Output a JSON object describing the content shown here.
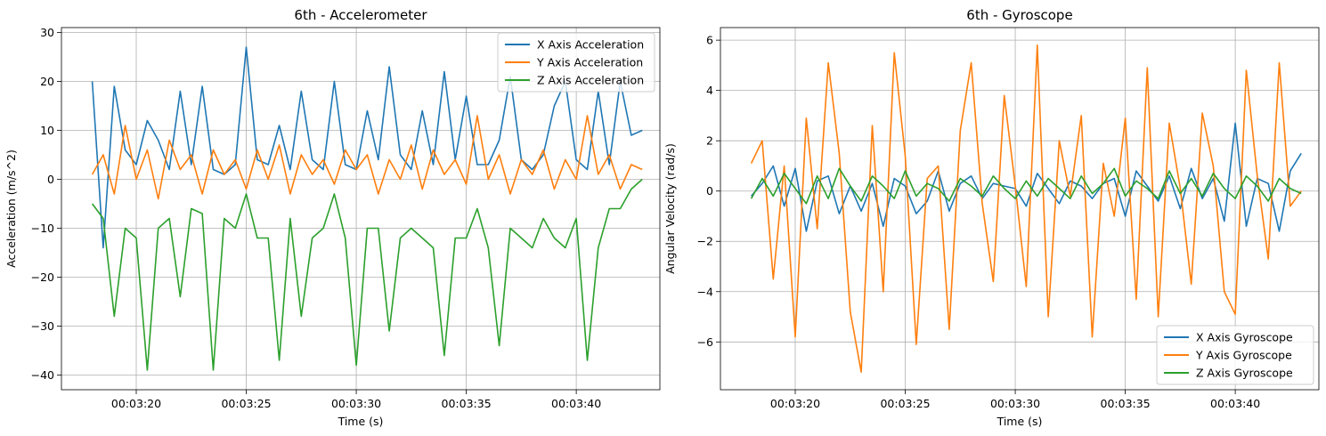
{
  "chart_data": [
    {
      "type": "line",
      "title": "6th - Accelerometer",
      "xlabel": "Time (s)",
      "ylabel": "Acceleration (m/s^2)",
      "x_unit": "seconds",
      "xlim": [
        "00:03:16.6",
        "00:03:43.8"
      ],
      "ylim": [
        -43,
        31
      ],
      "x_ticks": [
        "00:03:20",
        "00:03:25",
        "00:03:30",
        "00:03:35",
        "00:03:40"
      ],
      "y_ticks": [
        -40,
        -30,
        -20,
        -10,
        0,
        10,
        20,
        30
      ],
      "grid": true,
      "legend_position": "top-right",
      "series": [
        {
          "name": "X Axis Acceleration",
          "color": "#1f77b4",
          "x": [
            "00:03:18.0",
            "00:03:18.5",
            "00:03:19.0",
            "00:03:19.5",
            "00:03:20.0",
            "00:03:20.5",
            "00:03:21.0",
            "00:03:21.5",
            "00:03:22.0",
            "00:03:22.5",
            "00:03:23.0",
            "00:03:23.5",
            "00:03:24.0",
            "00:03:24.5",
            "00:03:25.0",
            "00:03:25.5",
            "00:03:26.0",
            "00:03:26.5",
            "00:03:27.0",
            "00:03:27.5",
            "00:03:28.0",
            "00:03:28.5",
            "00:03:29.0",
            "00:03:29.5",
            "00:03:30.0",
            "00:03:30.5",
            "00:03:31.0",
            "00:03:31.5",
            "00:03:32.0",
            "00:03:32.5",
            "00:03:33.0",
            "00:03:33.5",
            "00:03:34.0",
            "00:03:34.5",
            "00:03:35.0",
            "00:03:35.5",
            "00:03:36.0",
            "00:03:36.5",
            "00:03:37.0",
            "00:03:37.5",
            "00:03:38.0",
            "00:03:38.5",
            "00:03:39.0",
            "00:03:39.5",
            "00:03:40.0",
            "00:03:40.5",
            "00:03:41.0",
            "00:03:41.5",
            "00:03:42.0",
            "00:03:42.5",
            "00:03:43.0"
          ],
          "values": [
            20,
            -14,
            19,
            6,
            3,
            12,
            8,
            2,
            18,
            3,
            19,
            2,
            1,
            3,
            27,
            4,
            3,
            11,
            2,
            18,
            4,
            2,
            20,
            3,
            2,
            14,
            4,
            23,
            5,
            2,
            14,
            3,
            22,
            4,
            17,
            3,
            3,
            8,
            21,
            4,
            2,
            5,
            15,
            20,
            4,
            2,
            18,
            3,
            20,
            9,
            10
          ]
        },
        {
          "name": "Y Axis Acceleration",
          "color": "#ff7f0e",
          "x": [
            "00:03:18.0",
            "00:03:18.5",
            "00:03:19.0",
            "00:03:19.5",
            "00:03:20.0",
            "00:03:20.5",
            "00:03:21.0",
            "00:03:21.5",
            "00:03:22.0",
            "00:03:22.5",
            "00:03:23.0",
            "00:03:23.5",
            "00:03:24.0",
            "00:03:24.5",
            "00:03:25.0",
            "00:03:25.5",
            "00:03:26.0",
            "00:03:26.5",
            "00:03:27.0",
            "00:03:27.5",
            "00:03:28.0",
            "00:03:28.5",
            "00:03:29.0",
            "00:03:29.5",
            "00:03:30.0",
            "00:03:30.5",
            "00:03:31.0",
            "00:03:31.5",
            "00:03:32.0",
            "00:03:32.5",
            "00:03:33.0",
            "00:03:33.5",
            "00:03:34.0",
            "00:03:34.5",
            "00:03:35.0",
            "00:03:35.5",
            "00:03:36.0",
            "00:03:36.5",
            "00:03:37.0",
            "00:03:37.5",
            "00:03:38.0",
            "00:03:38.5",
            "00:03:39.0",
            "00:03:39.5",
            "00:03:40.0",
            "00:03:40.5",
            "00:03:41.0",
            "00:03:41.5",
            "00:03:42.0",
            "00:03:42.5",
            "00:03:43.0"
          ],
          "values": [
            1,
            5,
            -3,
            11,
            0,
            6,
            -4,
            8,
            2,
            5,
            -3,
            6,
            1,
            4,
            -2,
            6,
            0,
            7,
            -3,
            5,
            1,
            4,
            -1,
            6,
            2,
            5,
            -3,
            4,
            0,
            7,
            -2,
            6,
            1,
            4,
            -1,
            13,
            0,
            5,
            -3,
            4,
            1,
            6,
            -2,
            4,
            0,
            13,
            1,
            5,
            -2,
            3,
            2
          ]
        },
        {
          "name": "Z Axis Acceleration",
          "color": "#2ca02c",
          "x": [
            "00:03:18.0",
            "00:03:18.5",
            "00:03:19.0",
            "00:03:19.5",
            "00:03:20.0",
            "00:03:20.5",
            "00:03:21.0",
            "00:03:21.5",
            "00:03:22.0",
            "00:03:22.5",
            "00:03:23.0",
            "00:03:23.5",
            "00:03:24.0",
            "00:03:24.5",
            "00:03:25.0",
            "00:03:25.5",
            "00:03:26.0",
            "00:03:26.5",
            "00:03:27.0",
            "00:03:27.5",
            "00:03:28.0",
            "00:03:28.5",
            "00:03:29.0",
            "00:03:29.5",
            "00:03:30.0",
            "00:03:30.5",
            "00:03:31.0",
            "00:03:31.5",
            "00:03:32.0",
            "00:03:32.5",
            "00:03:33.0",
            "00:03:33.5",
            "00:03:34.0",
            "00:03:34.5",
            "00:03:35.0",
            "00:03:35.5",
            "00:03:36.0",
            "00:03:36.5",
            "00:03:37.0",
            "00:03:37.5",
            "00:03:38.0",
            "00:03:38.5",
            "00:03:39.0",
            "00:03:39.5",
            "00:03:40.0",
            "00:03:40.5",
            "00:03:41.0",
            "00:03:41.5",
            "00:03:42.0",
            "00:03:42.5",
            "00:03:43.0"
          ],
          "values": [
            -5,
            -8,
            -28,
            -10,
            -12,
            -39,
            -10,
            -8,
            -24,
            -6,
            -7,
            -39,
            -8,
            -10,
            -3,
            -12,
            -12,
            -37,
            -8,
            -28,
            -12,
            -10,
            -3,
            -12,
            -38,
            -10,
            -10,
            -31,
            -12,
            -10,
            -12,
            -14,
            -36,
            -12,
            -12,
            -6,
            -14,
            -34,
            -10,
            -12,
            -14,
            -8,
            -12,
            -14,
            -8,
            -37,
            -14,
            -6,
            -6,
            -2,
            0
          ]
        }
      ]
    },
    {
      "type": "line",
      "title": "6th - Gyroscope",
      "xlabel": "Time (s)",
      "ylabel": "Angular Velocity (rad/s)",
      "x_unit": "seconds",
      "xlim": [
        "00:03:16.6",
        "00:03:43.8"
      ],
      "ylim": [
        -7.9,
        6.5
      ],
      "x_ticks": [
        "00:03:20",
        "00:03:25",
        "00:03:30",
        "00:03:35",
        "00:03:40"
      ],
      "y_ticks": [
        -6,
        -4,
        -2,
        0,
        2,
        4,
        6
      ],
      "grid": true,
      "legend_position": "bottom-right",
      "series": [
        {
          "name": "X Axis Gyroscope",
          "color": "#1f77b4",
          "x": [
            "00:03:18.0",
            "00:03:18.5",
            "00:03:19.0",
            "00:03:19.5",
            "00:03:20.0",
            "00:03:20.5",
            "00:03:21.0",
            "00:03:21.5",
            "00:03:22.0",
            "00:03:22.5",
            "00:03:23.0",
            "00:03:23.5",
            "00:03:24.0",
            "00:03:24.5",
            "00:03:25.0",
            "00:03:25.5",
            "00:03:26.0",
            "00:03:26.5",
            "00:03:27.0",
            "00:03:27.5",
            "00:03:28.0",
            "00:03:28.5",
            "00:03:29.0",
            "00:03:29.5",
            "00:03:30.0",
            "00:03:30.5",
            "00:03:31.0",
            "00:03:31.5",
            "00:03:32.0",
            "00:03:32.5",
            "00:03:33.0",
            "00:03:33.5",
            "00:03:34.0",
            "00:03:34.5",
            "00:03:35.0",
            "00:03:35.5",
            "00:03:36.0",
            "00:03:36.5",
            "00:03:37.0",
            "00:03:37.5",
            "00:03:38.0",
            "00:03:38.5",
            "00:03:39.0",
            "00:03:39.5",
            "00:03:40.0",
            "00:03:40.5",
            "00:03:41.0",
            "00:03:41.5",
            "00:03:42.0",
            "00:03:42.5",
            "00:03:43.0"
          ],
          "values": [
            -0.2,
            0.3,
            1.0,
            -0.6,
            0.9,
            -1.6,
            0.4,
            0.6,
            -0.9,
            0.2,
            -0.8,
            0.3,
            -1.4,
            0.5,
            0.2,
            -0.9,
            -0.4,
            0.8,
            -0.8,
            0.3,
            0.6,
            -0.3,
            0.3,
            0.2,
            0.1,
            -0.6,
            0.7,
            0.1,
            -0.5,
            0.4,
            0.2,
            -0.3,
            0.3,
            0.5,
            -1.0,
            0.8,
            0.2,
            -0.4,
            0.6,
            -0.7,
            0.9,
            -0.3,
            0.5,
            -1.2,
            2.7,
            -1.4,
            0.5,
            0.3,
            -1.6,
            0.8,
            1.5
          ]
        },
        {
          "name": "Y Axis Gyroscope",
          "color": "#ff7f0e",
          "x": [
            "00:03:18.0",
            "00:03:18.5",
            "00:03:19.0",
            "00:03:19.5",
            "00:03:20.0",
            "00:03:20.5",
            "00:03:21.0",
            "00:03:21.5",
            "00:03:22.0",
            "00:03:22.5",
            "00:03:23.0",
            "00:03:23.5",
            "00:03:24.0",
            "00:03:24.5",
            "00:03:25.0",
            "00:03:25.5",
            "00:03:26.0",
            "00:03:26.5",
            "00:03:27.0",
            "00:03:27.5",
            "00:03:28.0",
            "00:03:28.5",
            "00:03:29.0",
            "00:03:29.5",
            "00:03:30.0",
            "00:03:30.5",
            "00:03:31.0",
            "00:03:31.5",
            "00:03:32.0",
            "00:03:32.5",
            "00:03:33.0",
            "00:03:33.5",
            "00:03:34.0",
            "00:03:34.5",
            "00:03:35.0",
            "00:03:35.5",
            "00:03:36.0",
            "00:03:36.5",
            "00:03:37.0",
            "00:03:37.5",
            "00:03:38.0",
            "00:03:38.5",
            "00:03:39.0",
            "00:03:39.5",
            "00:03:40.0",
            "00:03:40.5",
            "00:03:41.0",
            "00:03:41.5",
            "00:03:42.0",
            "00:03:42.5",
            "00:03:43.0"
          ],
          "values": [
            1.1,
            2.0,
            -3.5,
            1.0,
            -5.8,
            2.9,
            -1.5,
            5.1,
            1.5,
            -4.8,
            -7.2,
            2.6,
            -4.0,
            5.5,
            1.4,
            -6.1,
            0.5,
            1.0,
            -5.5,
            2.4,
            5.1,
            -0.5,
            -3.6,
            3.8,
            0.2,
            -3.8,
            5.8,
            -5.0,
            2.0,
            -0.2,
            3.0,
            -5.8,
            1.1,
            -1.0,
            2.9,
            -4.3,
            4.9,
            -5.0,
            2.7,
            0.1,
            -3.7,
            3.1,
            1.0,
            -4.0,
            -4.9,
            4.8,
            0.6,
            -2.7,
            5.1,
            -0.6,
            0.0
          ]
        },
        {
          "name": "Z Axis Gyroscope",
          "color": "#2ca02c",
          "x": [
            "00:03:18.0",
            "00:03:18.5",
            "00:03:19.0",
            "00:03:19.5",
            "00:03:20.0",
            "00:03:20.5",
            "00:03:21.0",
            "00:03:21.5",
            "00:03:22.0",
            "00:03:22.5",
            "00:03:23.0",
            "00:03:23.5",
            "00:03:24.0",
            "00:03:24.5",
            "00:03:25.0",
            "00:03:25.5",
            "00:03:26.0",
            "00:03:26.5",
            "00:03:27.0",
            "00:03:27.5",
            "00:03:28.0",
            "00:03:28.5",
            "00:03:29.0",
            "00:03:29.5",
            "00:03:30.0",
            "00:03:30.5",
            "00:03:31.0",
            "00:03:31.5",
            "00:03:32.0",
            "00:03:32.5",
            "00:03:33.0",
            "00:03:33.5",
            "00:03:34.0",
            "00:03:34.5",
            "00:03:35.0",
            "00:03:35.5",
            "00:03:36.0",
            "00:03:36.5",
            "00:03:37.0",
            "00:03:37.5",
            "00:03:38.0",
            "00:03:38.5",
            "00:03:39.0",
            "00:03:39.5",
            "00:03:40.0",
            "00:03:40.5",
            "00:03:41.0",
            "00:03:41.5",
            "00:03:42.0",
            "00:03:42.5",
            "00:03:43.0"
          ],
          "values": [
            -0.3,
            0.5,
            -0.2,
            0.7,
            0.1,
            -0.5,
            0.6,
            -0.3,
            0.9,
            0.2,
            -0.4,
            0.6,
            0.2,
            -0.3,
            0.8,
            -0.2,
            0.3,
            0.1,
            -0.4,
            0.5,
            0.2,
            -0.2,
            0.6,
            0.1,
            -0.3,
            0.4,
            -0.2,
            0.5,
            0.1,
            -0.3,
            0.6,
            -0.1,
            0.3,
            0.9,
            -0.2,
            0.4,
            0.1,
            -0.3,
            0.8,
            -0.1,
            0.5,
            -0.2,
            0.7,
            0.1,
            -0.3,
            0.6,
            0.2,
            -0.4,
            0.5,
            0.1,
            -0.1
          ]
        }
      ]
    }
  ]
}
